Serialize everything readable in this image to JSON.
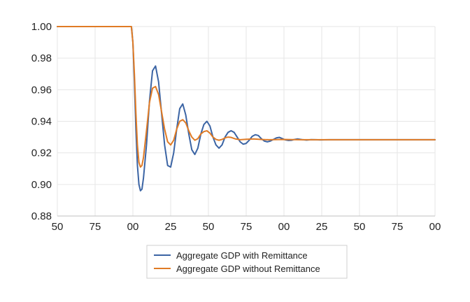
{
  "chart_data": {
    "type": "line",
    "title": "",
    "xlabel": "",
    "ylabel": "",
    "xlim": [
      1850,
      2100
    ],
    "ylim": [
      0.88,
      1.0
    ],
    "x_ticks": [
      1850,
      1875,
      1900,
      1925,
      1950,
      1975,
      2000,
      2025,
      2050,
      2075,
      2100
    ],
    "x_tick_labels": [
      "50",
      "75",
      "00",
      "25",
      "50",
      "75",
      "00",
      "25",
      "50",
      "75",
      "00"
    ],
    "y_ticks": [
      0.88,
      0.9,
      0.92,
      0.94,
      0.96,
      0.98,
      1.0
    ],
    "y_tick_labels": [
      "0.88",
      "0.90",
      "0.92",
      "0.94",
      "0.96",
      "0.98",
      "1.00"
    ],
    "grid": true,
    "legend_position": "bottom",
    "series": [
      {
        "name": "Aggregate GDP with Remittance",
        "color": "#3B64A4",
        "x": [
          1850,
          1899,
          1900,
          1901,
          1902,
          1903,
          1904,
          1905,
          1906,
          1907,
          1909,
          1911,
          1913,
          1915,
          1917,
          1919,
          1921,
          1923,
          1925,
          1927,
          1929,
          1931,
          1933,
          1935,
          1937,
          1939,
          1941,
          1943,
          1945,
          1947,
          1949,
          1951,
          1953,
          1955,
          1957,
          1959,
          1961,
          1963,
          1965,
          1967,
          1969,
          1971,
          1973,
          1975,
          1977,
          1979,
          1981,
          1983,
          1985,
          1987,
          1989,
          1991,
          1993,
          1995,
          1997,
          1999,
          2001,
          2003,
          2005,
          2007,
          2009,
          2012,
          2015,
          2018,
          2021,
          2024,
          2030,
          2050,
          2075,
          2100
        ],
        "y": [
          1.0,
          1.0,
          0.99,
          0.965,
          0.935,
          0.912,
          0.9,
          0.896,
          0.897,
          0.904,
          0.925,
          0.953,
          0.972,
          0.975,
          0.965,
          0.945,
          0.925,
          0.912,
          0.911,
          0.92,
          0.935,
          0.948,
          0.951,
          0.944,
          0.932,
          0.922,
          0.919,
          0.923,
          0.932,
          0.938,
          0.94,
          0.937,
          0.93,
          0.925,
          0.923,
          0.925,
          0.93,
          0.933,
          0.934,
          0.933,
          0.93,
          0.927,
          0.9255,
          0.926,
          0.928,
          0.9305,
          0.9315,
          0.931,
          0.929,
          0.9275,
          0.927,
          0.9275,
          0.9285,
          0.9295,
          0.9298,
          0.929,
          0.9282,
          0.9279,
          0.928,
          0.9285,
          0.9288,
          0.9284,
          0.9281,
          0.9284,
          0.9283,
          0.9282,
          0.9283,
          0.9283,
          0.9283,
          0.9283
        ]
      },
      {
        "name": "Aggregate GDP without Remittance",
        "color": "#E07B25",
        "x": [
          1850,
          1899,
          1900,
          1901,
          1902,
          1903,
          1904,
          1905,
          1906,
          1907,
          1909,
          1911,
          1913,
          1915,
          1917,
          1919,
          1921,
          1923,
          1925,
          1927,
          1929,
          1931,
          1933,
          1935,
          1937,
          1939,
          1941,
          1943,
          1945,
          1947,
          1949,
          1951,
          1953,
          1955,
          1957,
          1959,
          1961,
          1963,
          1965,
          1968,
          1971,
          1975,
          1980,
          1985,
          1990,
          2000,
          2010,
          2020,
          2050,
          2075,
          2100
        ],
        "y": [
          1.0,
          1.0,
          0.99,
          0.97,
          0.945,
          0.925,
          0.914,
          0.911,
          0.912,
          0.917,
          0.934,
          0.952,
          0.961,
          0.962,
          0.957,
          0.946,
          0.935,
          0.927,
          0.925,
          0.928,
          0.935,
          0.94,
          0.941,
          0.939,
          0.934,
          0.93,
          0.928,
          0.929,
          0.932,
          0.9335,
          0.934,
          0.9325,
          0.93,
          0.9285,
          0.928,
          0.9285,
          0.9295,
          0.93,
          0.9298,
          0.9288,
          0.9283,
          0.9286,
          0.9288,
          0.9285,
          0.9283,
          0.9285,
          0.9283,
          0.9283,
          0.9283,
          0.9283,
          0.9283
        ]
      }
    ]
  }
}
